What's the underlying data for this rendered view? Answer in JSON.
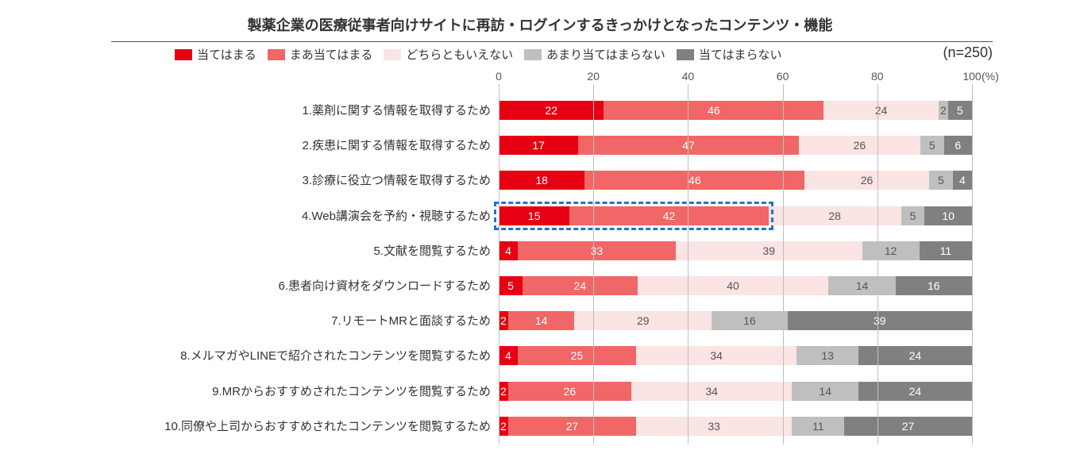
{
  "chart": {
    "type": "stacked-bar-horizontal",
    "title": "製薬企業の医療従事者向けサイトに再訪・ログインするきっかけとなったコンテンツ・機能",
    "n_label": "(n=250)",
    "pct_symbol": "(%)",
    "x_axis": {
      "min": 0,
      "max": 100,
      "step": 20
    },
    "colors": {
      "s1": "#e60012",
      "s2": "#f16666",
      "s3": "#fbe4e4",
      "s4": "#bfbfbf",
      "s5": "#808080",
      "grid": "#bfbfbf",
      "title_rule": "#555555",
      "highlight": "#2673c4",
      "text_dark": "#333333",
      "text_on_red": "#ffffff",
      "text_on_light": "#555555"
    },
    "legend": [
      {
        "key": "s1",
        "label": "当てはまる"
      },
      {
        "key": "s2",
        "label": "まあ当てはまる"
      },
      {
        "key": "s3",
        "label": "どちらともいえない"
      },
      {
        "key": "s4",
        "label": "あまり当てはまらない"
      },
      {
        "key": "s5",
        "label": "当てはまらない"
      }
    ],
    "rows": [
      {
        "label": "1.薬剤に関する情報を取得するため",
        "values": [
          22,
          46,
          24,
          2,
          5
        ],
        "highlight_first_two": false
      },
      {
        "label": "2.疾患に関する情報を取得するため",
        "values": [
          17,
          47,
          26,
          5,
          6
        ],
        "highlight_first_two": false
      },
      {
        "label": "3.診療に役立つ情報を取得するため",
        "values": [
          18,
          46,
          26,
          5,
          4
        ],
        "highlight_first_two": false
      },
      {
        "label": "4.Web講演会を予約・視聴するため",
        "values": [
          15,
          42,
          28,
          5,
          10
        ],
        "highlight_first_two": true
      },
      {
        "label": "5.文献を閲覧するため",
        "values": [
          4,
          33,
          39,
          12,
          11
        ],
        "highlight_first_two": false
      },
      {
        "label": "6.患者向け資材をダウンロードするため",
        "values": [
          5,
          24,
          40,
          14,
          16
        ],
        "highlight_first_two": false
      },
      {
        "label": "7.リモートMRと面談するため",
        "values": [
          2,
          14,
          29,
          16,
          39
        ],
        "highlight_first_two": false
      },
      {
        "label": "8.メルマガやLINEで紹介されたコンテンツを閲覧するため",
        "values": [
          4,
          25,
          34,
          13,
          24
        ],
        "highlight_first_two": false
      },
      {
        "label": "9.MRからおすすめされたコンテンツを閲覧するため",
        "values": [
          2,
          26,
          34,
          14,
          24
        ],
        "highlight_first_two": false
      },
      {
        "label": "10.同僚や上司からおすすめされたコンテンツを閲覧するため",
        "values": [
          2,
          27,
          33,
          11,
          27
        ],
        "highlight_first_two": false
      }
    ],
    "typography": {
      "title_fontsize": 18,
      "label_fontsize": 15,
      "value_fontsize": 14,
      "font_family": "Meiryo"
    }
  }
}
